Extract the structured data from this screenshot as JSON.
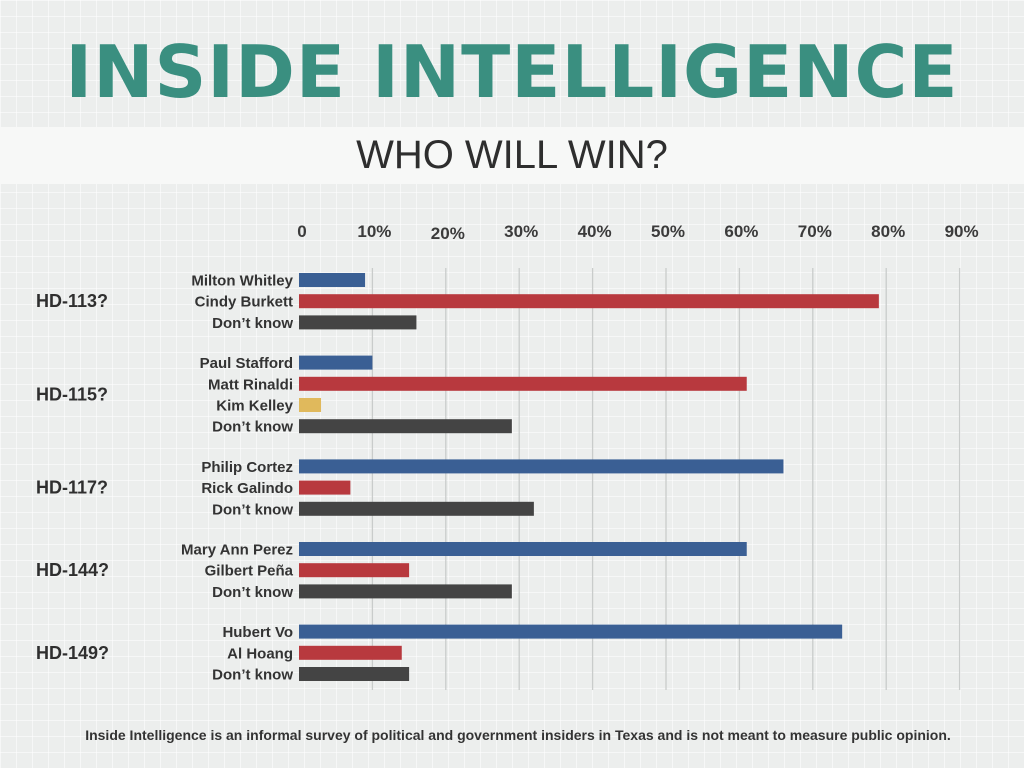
{
  "header": {
    "brand": "INSIDE INTELLIGENCE",
    "question": "WHO WILL WIN?"
  },
  "chart_data": {
    "type": "bar",
    "orientation": "horizontal",
    "title": "WHO WILL WIN?",
    "x_ticks": [
      "0",
      "10%",
      "20%",
      "30%",
      "40%",
      "50%",
      "60%",
      "70%",
      "80%",
      "90%"
    ],
    "xlim": [
      0,
      90
    ],
    "grid": true,
    "colors": {
      "blue": "#3a5f94",
      "red": "#b8393e",
      "gold": "#e0b95c",
      "dark": "#444444"
    },
    "groups": [
      {
        "label": "HD-113?",
        "entries": [
          {
            "name": "Milton Whitley",
            "value": 9,
            "color": "blue"
          },
          {
            "name": "Cindy Burkett",
            "value": 79,
            "color": "red"
          },
          {
            "name": "Don’t know",
            "value": 16,
            "color": "dark"
          }
        ]
      },
      {
        "label": "HD-115?",
        "entries": [
          {
            "name": "Paul Stafford",
            "value": 10,
            "color": "blue"
          },
          {
            "name": "Matt Rinaldi",
            "value": 61,
            "color": "red"
          },
          {
            "name": "Kim Kelley",
            "value": 3,
            "color": "gold"
          },
          {
            "name": "Don’t know",
            "value": 29,
            "color": "dark"
          }
        ]
      },
      {
        "label": "HD-117?",
        "entries": [
          {
            "name": "Philip Cortez",
            "value": 66,
            "color": "blue"
          },
          {
            "name": "Rick Galindo",
            "value": 7,
            "color": "red"
          },
          {
            "name": "Don’t know",
            "value": 32,
            "color": "dark"
          }
        ]
      },
      {
        "label": "HD-144?",
        "entries": [
          {
            "name": "Mary Ann Perez",
            "value": 61,
            "color": "blue"
          },
          {
            "name": "Gilbert Peña",
            "value": 15,
            "color": "red"
          },
          {
            "name": "Don’t know",
            "value": 29,
            "color": "dark"
          }
        ]
      },
      {
        "label": "HD-149?",
        "entries": [
          {
            "name": "Hubert Vo",
            "value": 74,
            "color": "blue"
          },
          {
            "name": "Al Hoang",
            "value": 14,
            "color": "red"
          },
          {
            "name": "Don’t know",
            "value": 15,
            "color": "dark"
          }
        ]
      }
    ]
  },
  "footnote": "Inside Intelligence is an informal survey of political and government insiders in Texas and is not meant to measure public opinion."
}
